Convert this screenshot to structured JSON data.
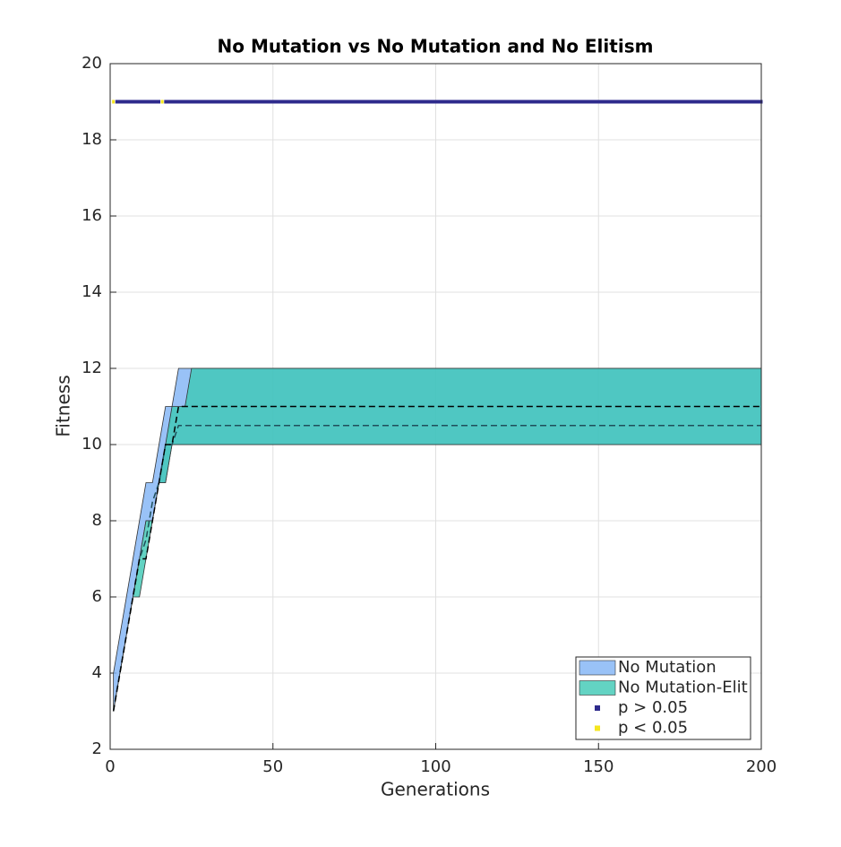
{
  "chart_data": {
    "type": "band",
    "title": "No Mutation vs No Mutation and No Elitism",
    "x_label": "Generations",
    "y_label": "Fitness",
    "xlim": [
      0,
      200
    ],
    "ylim": [
      2,
      20
    ],
    "xticks": [
      0,
      50,
      100,
      150,
      200
    ],
    "yticks": [
      2,
      4,
      6,
      8,
      10,
      12,
      14,
      16,
      18,
      20
    ],
    "grid": true,
    "legend": "lower right",
    "x": [
      1,
      3,
      5,
      7,
      9,
      11,
      13,
      15,
      17,
      19,
      21,
      23,
      25,
      200
    ],
    "series": [
      {
        "name": "No Mutation",
        "color": "#80b3f5",
        "upper": [
          4,
          5,
          6,
          7,
          8,
          9,
          9,
          10,
          11,
          11,
          12,
          12,
          12,
          12
        ],
        "lower": [
          3,
          4,
          5,
          6,
          7,
          8,
          8,
          9,
          9,
          10,
          10,
          10,
          10,
          10
        ],
        "median": [
          3,
          4,
          5,
          6,
          7,
          7.5,
          8.5,
          9,
          10,
          10,
          10.5,
          10.5,
          10.5,
          10.5
        ]
      },
      {
        "name": "No Mutation-Elit",
        "color": "#3cc8b4",
        "upper": [
          3,
          4,
          5,
          6,
          7,
          8,
          8,
          9,
          10,
          11,
          11,
          11,
          12,
          12
        ],
        "lower": [
          3,
          4,
          5,
          6,
          6,
          7,
          8,
          9,
          9,
          10,
          10,
          10,
          10,
          10
        ],
        "median": [
          3,
          4,
          5,
          6,
          7,
          7,
          8,
          9,
          10,
          10,
          11,
          11,
          11,
          11
        ]
      }
    ],
    "markers": [
      {
        "name": "p > 0.05",
        "color": "#2e2a8c",
        "y": 19,
        "x_ranges": [
          [
            2,
            15
          ],
          [
            17,
            200
          ]
        ]
      },
      {
        "name": "p < 0.05",
        "color": "#f5e61e",
        "y": 19,
        "x_ranges": [
          [
            1,
            1
          ],
          [
            16,
            16
          ]
        ]
      }
    ]
  }
}
